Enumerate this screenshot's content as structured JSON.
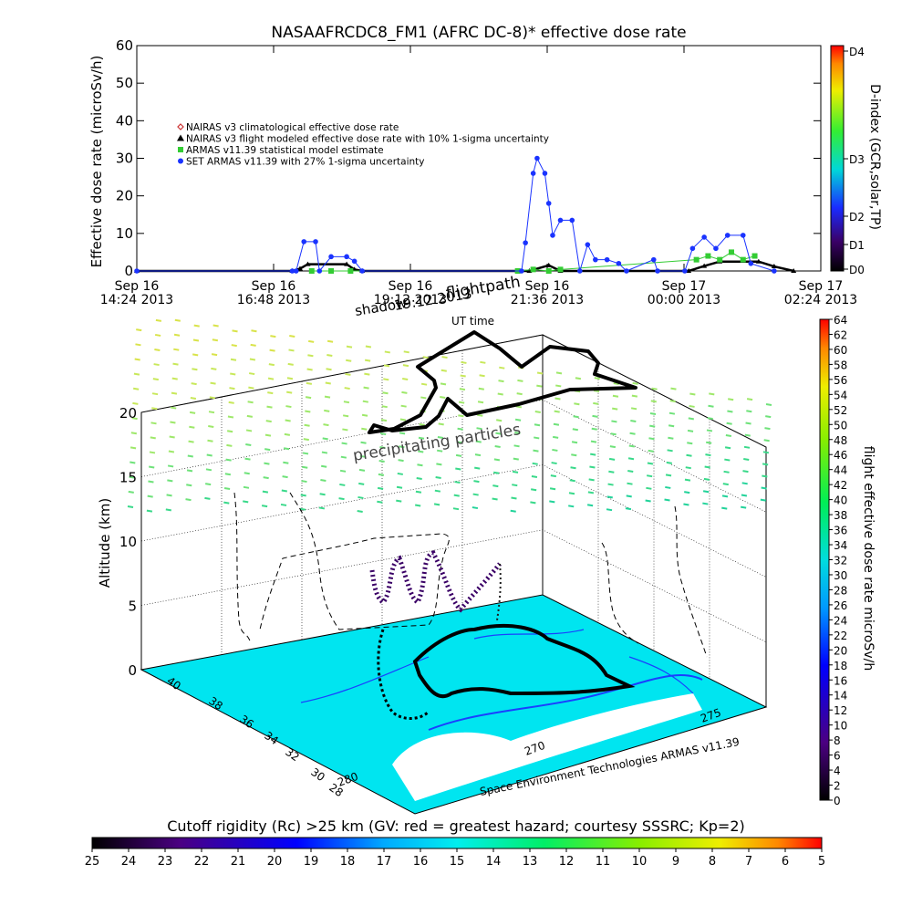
{
  "chart_data": [
    {
      "type": "line",
      "title": "NASAAFRCDC8_FM1 (AFRC DC-8)* effective dose rate",
      "ylabel": "Effective dose rate (microSv/h)",
      "xlabel": "",
      "ylim": [
        0,
        60
      ],
      "yticks": [
        "0",
        "10",
        "20",
        "30",
        "40",
        "50",
        "60"
      ],
      "x_ticks": [
        {
          "line1": "Sep 16",
          "line2": "14:24 2013"
        },
        {
          "line1": "Sep 16",
          "line2": "16:48 2013"
        },
        {
          "line1": "Sep 16",
          "line2": "19:12 2013"
        },
        {
          "line1": "Sep 16",
          "line2": "21:36 2013"
        },
        {
          "line1": "Sep 17",
          "line2": "00:00 2013"
        },
        {
          "line1": "Sep 17",
          "line2": "02:24 2013"
        }
      ],
      "legend_position": "upper-left",
      "series": [
        {
          "name": "NAIRAS v3 climatological effective dose rate",
          "color": "#cc3333",
          "marker": "diamond",
          "values": []
        },
        {
          "name": "NAIRAS v3 flight modeled effective dose rate with 10% 1-sigma uncertainty",
          "color": "#000000",
          "marker": "triangle",
          "points": [
            [
              0.0,
              0
            ],
            [
              4.0,
              0
            ],
            [
              4.2,
              0.6
            ],
            [
              4.4,
              1.8
            ],
            [
              5.4,
              1.8
            ],
            [
              5.6,
              0.4
            ],
            [
              5.8,
              0
            ],
            [
              9.8,
              0
            ],
            [
              10.1,
              0
            ],
            [
              10.6,
              1.5
            ],
            [
              10.9,
              0
            ],
            [
              14.2,
              0
            ],
            [
              14.6,
              1.3
            ],
            [
              15.0,
              2.5
            ],
            [
              16.0,
              2.5
            ],
            [
              16.4,
              1.2
            ],
            [
              16.9,
              0
            ]
          ]
        },
        {
          "name": "ARMAS v11.39 statistical model estimate",
          "color": "#33cc33",
          "marker": "square",
          "points": [
            [
              4.5,
              0
            ],
            [
              5.0,
              0
            ],
            [
              5.5,
              0
            ],
            [
              9.8,
              0
            ],
            [
              10.2,
              0.4
            ],
            [
              10.6,
              0
            ],
            [
              10.9,
              0.4
            ],
            [
              14.4,
              3
            ],
            [
              14.7,
              4
            ],
            [
              15.0,
              3
            ],
            [
              15.3,
              5
            ],
            [
              15.6,
              3
            ],
            [
              15.9,
              4
            ]
          ]
        },
        {
          "name": "SET ARMAS v11.39 with 27% 1-sigma uncertainty",
          "color": "#1a33ff",
          "marker": "circle",
          "points": [
            [
              0.0,
              0
            ],
            [
              4.0,
              0
            ],
            [
              4.1,
              0
            ],
            [
              4.3,
              7.8
            ],
            [
              4.6,
              7.8
            ],
            [
              4.7,
              0
            ],
            [
              5.0,
              3.8
            ],
            [
              5.4,
              3.8
            ],
            [
              5.6,
              2.6
            ],
            [
              5.8,
              0
            ],
            [
              9.9,
              0
            ],
            [
              10.0,
              7.5
            ],
            [
              10.2,
              26
            ],
            [
              10.3,
              30
            ],
            [
              10.5,
              26
            ],
            [
              10.6,
              18
            ],
            [
              10.7,
              9.5
            ],
            [
              10.9,
              13.5
            ],
            [
              11.2,
              13.5
            ],
            [
              11.4,
              0
            ],
            [
              11.6,
              7
            ],
            [
              11.8,
              3
            ],
            [
              12.1,
              3
            ],
            [
              12.4,
              2
            ],
            [
              12.6,
              0
            ],
            [
              13.3,
              3
            ],
            [
              13.4,
              0
            ],
            [
              14.1,
              0
            ],
            [
              14.3,
              6
            ],
            [
              14.6,
              9
            ],
            [
              14.9,
              6
            ],
            [
              15.2,
              9.5
            ],
            [
              15.6,
              9.5
            ],
            [
              15.8,
              2
            ],
            [
              16.4,
              0
            ]
          ]
        }
      ],
      "d_index_scale": {
        "label": "D-index (GCR,solar,TP)",
        "ticks": [
          "D0",
          "D1",
          "D2",
          "D3",
          "D4"
        ]
      }
    },
    {
      "type": "3d-flight-plot",
      "zlabel": "Altitude (km)",
      "z_ticks": [
        "0",
        "5",
        "10",
        "15",
        "20"
      ],
      "lat_ticks": [
        "28",
        "30",
        "32",
        "34",
        "36",
        "38",
        "40"
      ],
      "lon_ticks": [
        "280",
        "270",
        "275"
      ],
      "annotations": {
        "shadow": "shadow",
        "date": "19:12 2013",
        "flightpath": "flightpath",
        "ut_time": "UT time",
        "precipitating": "precipitating particles",
        "credit": "Space Environment Technologies ARMAS v11.39"
      },
      "dose_rate_colorbar": {
        "label": "flight effective dose rate microSv/h",
        "min": 0,
        "max": 64,
        "ticks": [
          "0",
          "2",
          "4",
          "6",
          "8",
          "10",
          "12",
          "14",
          "16",
          "18",
          "20",
          "22",
          "24",
          "26",
          "28",
          "30",
          "32",
          "34",
          "36",
          "38",
          "40",
          "42",
          "44",
          "46",
          "48",
          "50",
          "52",
          "54",
          "56",
          "58",
          "60",
          "62",
          "64"
        ]
      },
      "cutoff_colorbar": {
        "title": "Cutoff rigidity (Rc) >25 km (GV: red = greatest hazard; courtesy SSSRC; Kp=2)",
        "ticks": [
          "25",
          "24",
          "23",
          "22",
          "21",
          "20",
          "19",
          "18",
          "17",
          "16",
          "15",
          "14",
          "13",
          "12",
          "11",
          "10",
          "9",
          "8",
          "7",
          "6",
          "5"
        ]
      }
    }
  ]
}
